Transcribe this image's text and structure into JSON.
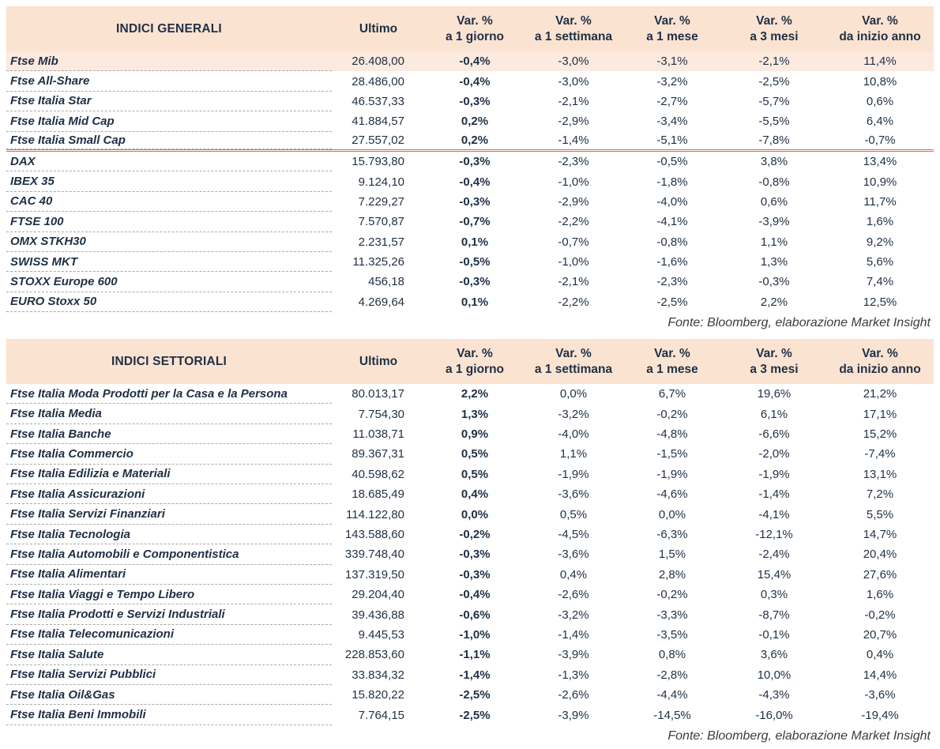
{
  "colors": {
    "header_bg": "#fbe3d2",
    "highlight_bg": "#fceadf",
    "accent_line": "#df6a4c",
    "ink": "#1f3045"
  },
  "tables": [
    {
      "title": "INDICI GENERALI",
      "fonte": "Fonte: Bloomberg, elaborazione Market Insight",
      "columns": [
        {
          "key": "ultimo",
          "label": "Ultimo",
          "sub": ""
        },
        {
          "key": "var-1-giorno",
          "label": "Var. %",
          "sub": "a 1 giorno"
        },
        {
          "key": "var-1-settimana",
          "label": "Var. %",
          "sub": "a 1 settimana"
        },
        {
          "key": "var-1-mese",
          "label": "Var. %",
          "sub": "a 1 mese"
        },
        {
          "key": "var-3-mesi",
          "label": "Var. %",
          "sub": "a 3 mesi"
        },
        {
          "key": "var-da-inizio-anno",
          "label": "Var. %",
          "sub": "da inizio anno"
        }
      ],
      "rows": [
        {
          "name": "Ftse Mib",
          "values": [
            "26.408,00",
            "-0,4%",
            "-3,0%",
            "-3,1%",
            "-2,1%",
            "11,4%"
          ],
          "highlight": true
        },
        {
          "name": "Ftse All-Share",
          "values": [
            "28.486,00",
            "-0,4%",
            "-3,0%",
            "-3,2%",
            "-2,5%",
            "10,8%"
          ]
        },
        {
          "name": "Ftse Italia Star",
          "values": [
            "46.537,33",
            "-0,3%",
            "-2,1%",
            "-2,7%",
            "-5,7%",
            "0,6%"
          ]
        },
        {
          "name": "Ftse Italia Mid Cap",
          "values": [
            "41.884,57",
            "0,2%",
            "-2,9%",
            "-3,4%",
            "-5,5%",
            "6,4%"
          ]
        },
        {
          "name": "Ftse Italia Small Cap",
          "values": [
            "27.557,02",
            "0,2%",
            "-1,4%",
            "-5,1%",
            "-7,8%",
            "-0,7%"
          ],
          "separator_after": true
        },
        {
          "name": "DAX",
          "values": [
            "15.793,80",
            "-0,3%",
            "-2,3%",
            "-0,5%",
            "3,8%",
            "13,4%"
          ]
        },
        {
          "name": "IBEX 35",
          "values": [
            "9.124,10",
            "-0,4%",
            "-1,0%",
            "-1,8%",
            "-0,8%",
            "10,9%"
          ]
        },
        {
          "name": "CAC 40",
          "values": [
            "7.229,27",
            "-0,3%",
            "-2,9%",
            "-4,0%",
            "0,6%",
            "11,7%"
          ]
        },
        {
          "name": "FTSE 100",
          "values": [
            "7.570,87",
            "-0,7%",
            "-2,2%",
            "-4,1%",
            "-3,9%",
            "1,6%"
          ]
        },
        {
          "name": "OMX STKH30",
          "values": [
            "2.231,57",
            "0,1%",
            "-0,7%",
            "-0,8%",
            "1,1%",
            "9,2%"
          ]
        },
        {
          "name": "SWISS MKT",
          "values": [
            "11.325,26",
            "-0,5%",
            "-1,0%",
            "-1,6%",
            "1,3%",
            "5,6%"
          ]
        },
        {
          "name": "STOXX Europe 600",
          "values": [
            "456,18",
            "-0,3%",
            "-2,1%",
            "-2,3%",
            "-0,3%",
            "7,4%"
          ]
        },
        {
          "name": "EURO Stoxx 50",
          "values": [
            "4.269,64",
            "0,1%",
            "-2,2%",
            "-2,5%",
            "2,2%",
            "12,5%"
          ]
        }
      ]
    },
    {
      "title": "INDICI SETTORIALI",
      "fonte": "Fonte: Bloomberg, elaborazione Market Insight",
      "columns": [
        {
          "key": "ultimo",
          "label": "Ultimo",
          "sub": ""
        },
        {
          "key": "var-1-giorno",
          "label": "Var. %",
          "sub": "a 1 giorno"
        },
        {
          "key": "var-1-settimana",
          "label": "Var. %",
          "sub": "a 1 settimana"
        },
        {
          "key": "var-1-mese",
          "label": "Var. %",
          "sub": "a 1 mese"
        },
        {
          "key": "var-3-mesi",
          "label": "Var. %",
          "sub": "a 3 mesi"
        },
        {
          "key": "var-da-inizio-anno",
          "label": "Var. %",
          "sub": "da inizio anno"
        }
      ],
      "rows": [
        {
          "name": "Ftse Italia Moda Prodotti per la Casa e la Persona",
          "values": [
            "80.013,17",
            "2,2%",
            "0,0%",
            "6,7%",
            "19,6%",
            "21,2%"
          ]
        },
        {
          "name": "Ftse Italia Media",
          "values": [
            "7.754,30",
            "1,3%",
            "-3,2%",
            "-0,2%",
            "6,1%",
            "17,1%"
          ]
        },
        {
          "name": "Ftse Italia Banche",
          "values": [
            "11.038,71",
            "0,9%",
            "-4,0%",
            "-4,8%",
            "-6,6%",
            "15,2%"
          ]
        },
        {
          "name": "Ftse Italia Commercio",
          "values": [
            "89.367,31",
            "0,5%",
            "1,1%",
            "-1,5%",
            "-2,0%",
            "-7,4%"
          ]
        },
        {
          "name": "Ftse Italia Edilizia e Materiali",
          "values": [
            "40.598,62",
            "0,5%",
            "-1,9%",
            "-1,9%",
            "-1,9%",
            "13,1%"
          ]
        },
        {
          "name": "Ftse Italia Assicurazioni",
          "values": [
            "18.685,49",
            "0,4%",
            "-3,6%",
            "-4,6%",
            "-1,4%",
            "7,2%"
          ]
        },
        {
          "name": "Ftse Italia Servizi Finanziari",
          "values": [
            "114.122,80",
            "0,0%",
            "0,5%",
            "0,0%",
            "-4,1%",
            "5,5%"
          ]
        },
        {
          "name": "Ftse Italia Tecnologia",
          "values": [
            "143.588,60",
            "-0,2%",
            "-4,5%",
            "-6,3%",
            "-12,1%",
            "14,7%"
          ]
        },
        {
          "name": "Ftse Italia Automobili e Componentistica",
          "values": [
            "339.748,40",
            "-0,3%",
            "-3,6%",
            "1,5%",
            "-2,4%",
            "20,4%"
          ]
        },
        {
          "name": "Ftse Italia Alimentari",
          "values": [
            "137.319,50",
            "-0,3%",
            "0,4%",
            "2,8%",
            "15,4%",
            "27,6%"
          ]
        },
        {
          "name": "Ftse Italia Viaggi e Tempo Libero",
          "values": [
            "29.204,40",
            "-0,4%",
            "-2,6%",
            "-0,2%",
            "0,3%",
            "1,6%"
          ]
        },
        {
          "name": "Ftse Italia Prodotti e Servizi Industriali",
          "values": [
            "39.436,88",
            "-0,6%",
            "-3,2%",
            "-3,3%",
            "-8,7%",
            "-0,2%"
          ]
        },
        {
          "name": "Ftse Italia Telecomunicazioni",
          "values": [
            "9.445,53",
            "-1,0%",
            "-1,4%",
            "-3,5%",
            "-0,1%",
            "20,7%"
          ]
        },
        {
          "name": "Ftse Italia Salute",
          "values": [
            "228.853,60",
            "-1,1%",
            "-3,9%",
            "0,8%",
            "3,6%",
            "0,4%"
          ]
        },
        {
          "name": "Ftse Italia Servizi Pubblici",
          "values": [
            "33.834,32",
            "-1,4%",
            "-1,3%",
            "-2,8%",
            "10,0%",
            "14,4%"
          ]
        },
        {
          "name": "Ftse Italia Oil&Gas",
          "values": [
            "15.820,22",
            "-2,5%",
            "-2,6%",
            "-4,4%",
            "-4,3%",
            "-3,6%"
          ]
        },
        {
          "name": "Ftse Italia Beni Immobili",
          "values": [
            "7.764,15",
            "-2,5%",
            "-3,9%",
            "-14,5%",
            "-16,0%",
            "-19,4%"
          ]
        }
      ]
    }
  ]
}
